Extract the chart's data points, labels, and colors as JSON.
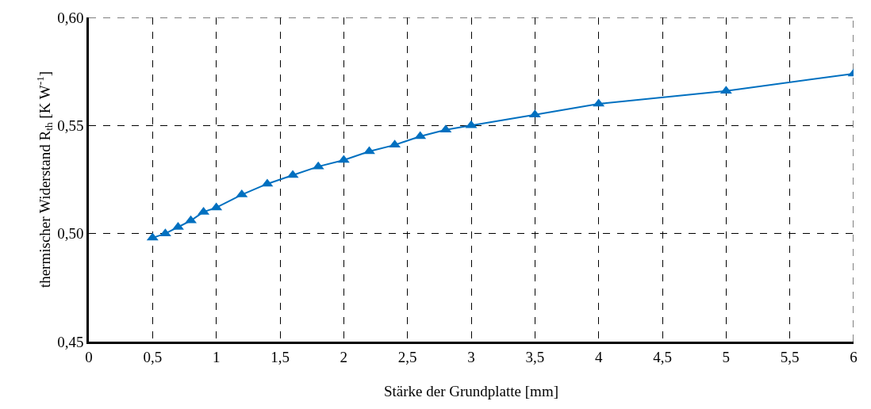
{
  "chart_data": {
    "type": "line",
    "xlabel": "Stärke der Grundplatte [mm]",
    "ylabel": "thermischer Widerstand R$_{th}$ [K W$^{-1}$]",
    "x": [
      0.5,
      0.6,
      0.7,
      0.8,
      0.9,
      1.0,
      1.2,
      1.4,
      1.6,
      1.8,
      2.0,
      2.2,
      2.4,
      2.6,
      2.8,
      3.0,
      3.5,
      4.0,
      5.0,
      6.0
    ],
    "series": [
      {
        "color": "#0070c0",
        "values": [
          0.498,
          0.5,
          0.503,
          0.506,
          0.51,
          0.512,
          0.518,
          0.523,
          0.527,
          0.531,
          0.534,
          0.538,
          0.541,
          0.545,
          0.548,
          0.55,
          0.555,
          0.56,
          0.566,
          0.574
        ]
      }
    ],
    "xlim": [
      0,
      6
    ],
    "xticks": [
      0,
      {
        "value": 0.5,
        "label": "0,5"
      },
      1,
      {
        "value": 1.5,
        "label": "1,5"
      },
      2,
      {
        "value": 2.5,
        "label": "2,5"
      },
      3,
      {
        "value": 3.5,
        "label": "3,5"
      },
      4,
      {
        "value": 4.5,
        "label": "4,5"
      },
      5,
      {
        "value": 5.5,
        "label": "5,5"
      },
      6
    ],
    "ylim": [
      0.45,
      0.6
    ],
    "yticks": [
      {
        "value": 0.45,
        "label": "0,45"
      },
      {
        "value": 0.5,
        "label": "0,50"
      },
      {
        "value": 0.55,
        "label": "0,55"
      },
      {
        "value": 0.6,
        "label": "0,60"
      }
    ],
    "grid": true,
    "marker": "triangle",
    "line_style": "solid"
  }
}
